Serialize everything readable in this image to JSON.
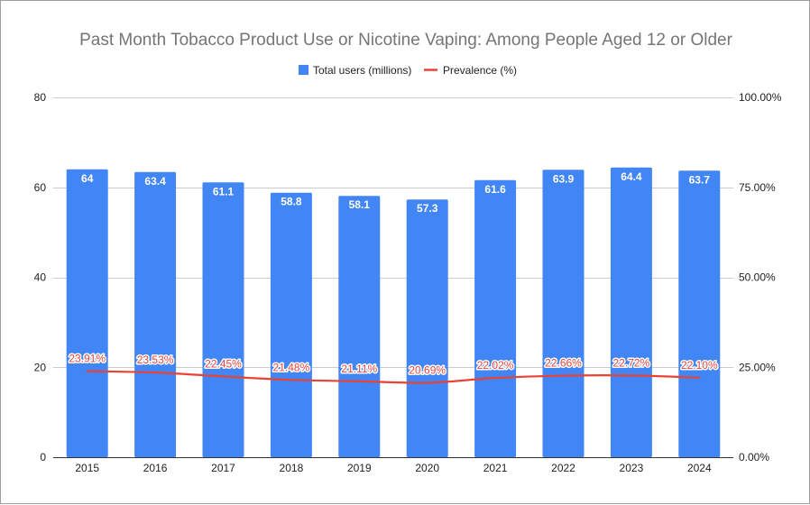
{
  "chart_data": {
    "type": "bar",
    "title": "Past Month Tobacco Product Use or Nicotine Vaping: Among People Aged 12 or Older",
    "categories": [
      "2015",
      "2016",
      "2017",
      "2018",
      "2019",
      "2020",
      "2021",
      "2022",
      "2023",
      "2024"
    ],
    "series": [
      {
        "name": "Total users (millions)",
        "type": "bar",
        "axis": "left",
        "color": "#4285f4",
        "values": [
          64,
          63.4,
          61.1,
          58.8,
          58.1,
          57.3,
          61.6,
          63.9,
          64.4,
          63.7
        ],
        "labels": [
          "64",
          "63.4",
          "61.1",
          "58.8",
          "58.1",
          "57.3",
          "61.6",
          "63.9",
          "64.4",
          "63.7"
        ]
      },
      {
        "name": "Prevalence (%)",
        "type": "line",
        "axis": "right",
        "color": "#ea4335",
        "values": [
          23.91,
          23.53,
          22.45,
          21.48,
          21.11,
          20.69,
          22.02,
          22.66,
          22.72,
          22.1
        ],
        "labels": [
          "23.91%",
          "23.53%",
          "22.45%",
          "21.48%",
          "21.11%",
          "20.69%",
          "22.02%",
          "22.66%",
          "22.72%",
          "22.10%"
        ]
      }
    ],
    "left_axis": {
      "ylim": [
        0,
        80
      ],
      "ticks": [
        0,
        20,
        40,
        60,
        80
      ],
      "tick_labels": [
        "0",
        "20",
        "40",
        "60",
        "80"
      ]
    },
    "right_axis": {
      "ylim": [
        0,
        100
      ],
      "ticks": [
        0,
        25,
        50,
        75,
        100
      ],
      "tick_labels": [
        "0.00%",
        "25.00%",
        "50.00%",
        "75.00%",
        "100.00%"
      ]
    },
    "grid": true,
    "legend_position": "top-center"
  }
}
